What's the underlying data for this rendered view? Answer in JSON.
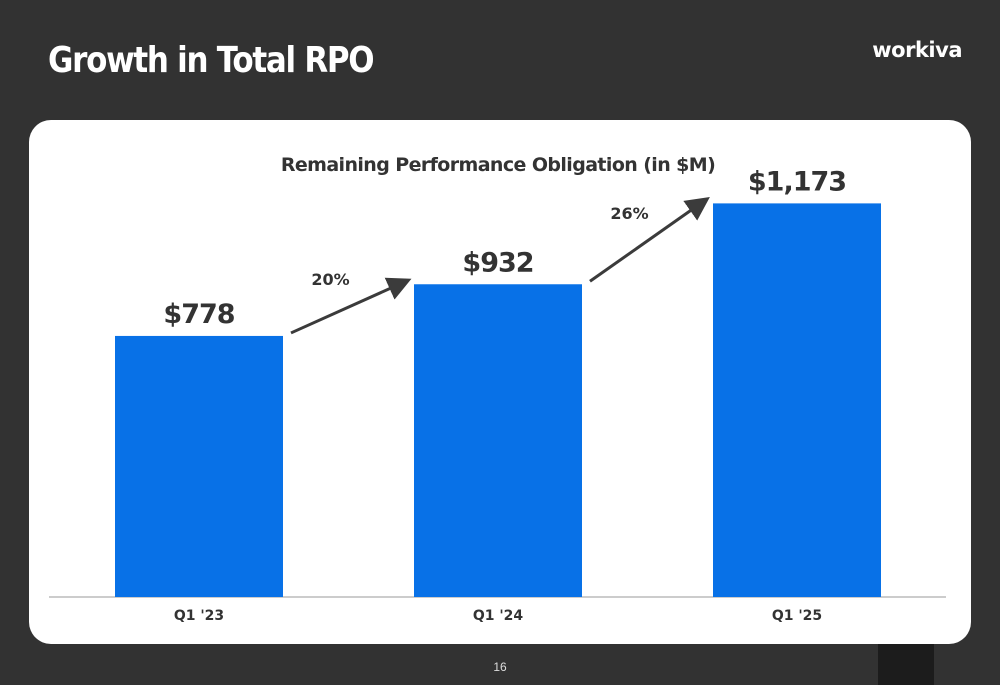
{
  "slide": {
    "title": "Growth in Total RPO",
    "logo": "workiva",
    "page_number": "16"
  },
  "colors": {
    "background": "#323232",
    "card": "#ffffff",
    "bar": "#0871e7",
    "text_dark": "#333333",
    "arrow": "#3b3b3b"
  },
  "chart_data": {
    "type": "bar",
    "title": "Remaining Performance Obligation (in $M)",
    "categories": [
      "Q1 '23",
      "Q1 '24",
      "Q1 '25"
    ],
    "values": [
      778,
      932,
      1173
    ],
    "value_labels": [
      "$778",
      "$932",
      "$1,173"
    ],
    "growth_annotations": [
      {
        "from": "Q1 '23",
        "to": "Q1 '24",
        "label": "20%"
      },
      {
        "from": "Q1 '24",
        "to": "Q1 '25",
        "label": "26%"
      }
    ],
    "xlabel": "",
    "ylabel": "",
    "ylim": [
      0,
      1350
    ],
    "grid": false,
    "legend": "none"
  }
}
